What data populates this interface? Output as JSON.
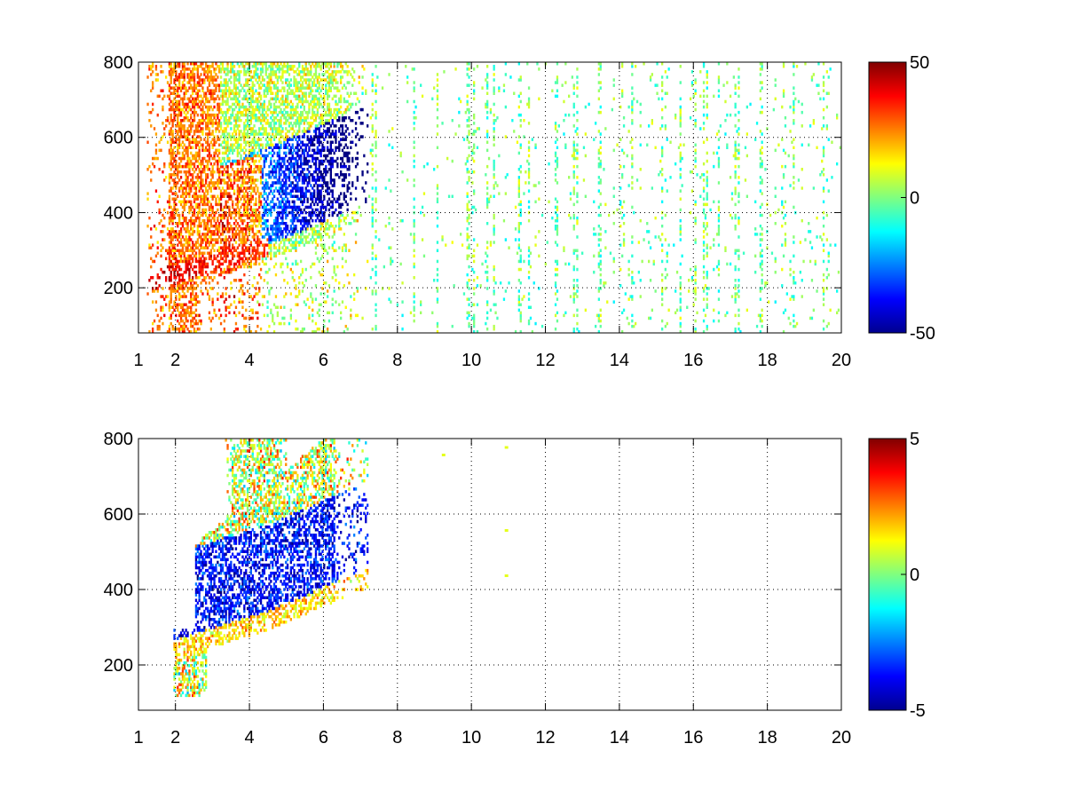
{
  "chart_data": [
    {
      "type": "heatmap",
      "xlim": [
        1,
        20
      ],
      "ylim": [
        80,
        800
      ],
      "x_ticks": [
        "1",
        "2",
        "4",
        "6",
        "8",
        "10",
        "12",
        "14",
        "16",
        "18",
        "20"
      ],
      "x_tick_values": [
        1,
        2,
        4,
        6,
        8,
        10,
        12,
        14,
        16,
        18,
        20
      ],
      "y_ticks": [
        "200",
        "400",
        "600",
        "800"
      ],
      "y_tick_values": [
        200,
        400,
        600,
        800
      ],
      "grid": true,
      "colormap": "jet",
      "clim": [
        -50,
        50
      ],
      "colorbar_ticks": [
        "50",
        "0",
        "-50"
      ],
      "colorbar_tick_values": [
        50,
        0,
        -50
      ],
      "description_of_values": {
        "dense_region_x": [
          1.2,
          7.2
        ],
        "sparse_speckle_x": [
          7.2,
          20
        ],
        "ridge_low_edge": [
          [
            2.0,
            240
          ],
          [
            3.0,
            255
          ],
          [
            4.0,
            270
          ],
          [
            5.0,
            300
          ],
          [
            6.0,
            340
          ],
          [
            6.8,
            380
          ]
        ]
      }
    },
    {
      "type": "heatmap",
      "xlim": [
        1,
        20
      ],
      "ylim": [
        80,
        800
      ],
      "x_ticks": [
        "1",
        "2",
        "4",
        "6",
        "8",
        "10",
        "12",
        "14",
        "16",
        "18",
        "20"
      ],
      "x_tick_values": [
        1,
        2,
        4,
        6,
        8,
        10,
        12,
        14,
        16,
        18,
        20
      ],
      "y_ticks": [
        "200",
        "400",
        "600",
        "800"
      ],
      "y_tick_values": [
        200,
        400,
        600,
        800
      ],
      "grid": true,
      "colormap": "jet",
      "clim": [
        -5,
        5
      ],
      "colorbar_ticks": [
        "5",
        "0",
        "-5"
      ],
      "colorbar_tick_values": [
        5,
        0,
        -5
      ],
      "description_of_values": {
        "dense_region_x": [
          1.9,
          7.2
        ],
        "isolated_points": [
          [
            9.2,
            760
          ],
          [
            10.9,
            780
          ],
          [
            10.9,
            560
          ],
          [
            10.9,
            440
          ]
        ]
      }
    }
  ]
}
